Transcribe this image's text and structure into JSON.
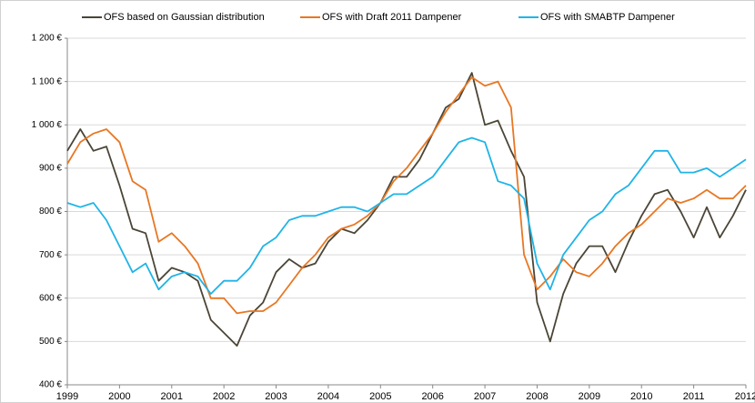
{
  "chart_data": {
    "type": "line",
    "x": [
      1999,
      1999.25,
      1999.5,
      1999.75,
      2000,
      2000.25,
      2000.5,
      2000.75,
      2001,
      2001.25,
      2001.5,
      2001.75,
      2002,
      2002.25,
      2002.5,
      2002.75,
      2003,
      2003.25,
      2003.5,
      2003.75,
      2004,
      2004.25,
      2004.5,
      2004.75,
      2005,
      2005.25,
      2005.5,
      2005.75,
      2006,
      2006.25,
      2006.5,
      2006.75,
      2007,
      2007.25,
      2007.5,
      2007.75,
      2008,
      2008.25,
      2008.5,
      2008.75,
      2009,
      2009.25,
      2009.5,
      2009.75,
      2010,
      2010.25,
      2010.5,
      2010.75,
      2011,
      2011.25,
      2011.5,
      2011.75,
      2012
    ],
    "series": [
      {
        "name": "OFS based on Gaussian distribution",
        "color": "#4a4536",
        "values": [
          940,
          990,
          940,
          950,
          860,
          760,
          750,
          640,
          670,
          660,
          640,
          550,
          520,
          490,
          560,
          590,
          660,
          690,
          670,
          680,
          730,
          760,
          750,
          780,
          820,
          880,
          880,
          920,
          980,
          1040,
          1060,
          1120,
          1000,
          1010,
          940,
          880,
          590,
          500,
          610,
          680,
          720,
          720,
          660,
          730,
          790,
          840,
          850,
          800,
          740,
          810,
          740,
          790,
          850
        ]
      },
      {
        "name": "OFS  with Draft 2011 Dampener",
        "color": "#e87722",
        "values": [
          910,
          960,
          980,
          990,
          960,
          870,
          850,
          730,
          750,
          720,
          680,
          600,
          600,
          565,
          570,
          570,
          590,
          630,
          670,
          700,
          740,
          760,
          770,
          790,
          820,
          870,
          900,
          940,
          980,
          1030,
          1070,
          1110,
          1090,
          1100,
          1040,
          700,
          620,
          650,
          690,
          660,
          650,
          680,
          720,
          750,
          770,
          800,
          830,
          820,
          830,
          850,
          830,
          830,
          860
        ]
      },
      {
        "name": "OFS with SMABTP Dampener",
        "color": "#1fb4e6",
        "values": [
          820,
          810,
          820,
          780,
          720,
          660,
          680,
          620,
          650,
          660,
          650,
          610,
          640,
          640,
          670,
          720,
          740,
          780,
          790,
          790,
          800,
          810,
          810,
          800,
          820,
          840,
          840,
          860,
          880,
          920,
          960,
          970,
          960,
          870,
          860,
          830,
          680,
          620,
          700,
          740,
          780,
          800,
          840,
          860,
          900,
          940,
          940,
          890,
          890,
          900,
          880,
          900,
          920
        ]
      }
    ],
    "xlim": [
      1999,
      2012
    ],
    "xticks": [
      1999,
      2000,
      2001,
      2002,
      2003,
      2004,
      2005,
      2006,
      2007,
      2008,
      2009,
      2010,
      2011,
      2012
    ],
    "ylim": [
      400,
      1200
    ],
    "yticks": [
      {
        "value": 400,
        "label": "400 €"
      },
      {
        "value": 500,
        "label": "500 €"
      },
      {
        "value": 600,
        "label": "600 €"
      },
      {
        "value": 700,
        "label": "700 €"
      },
      {
        "value": 800,
        "label": "800 €"
      },
      {
        "value": 900,
        "label": "900 €"
      },
      {
        "value": 1000,
        "label": "1 000 €"
      },
      {
        "value": 1100,
        "label": "1 100 €"
      },
      {
        "value": 1200,
        "label": "1 200 €"
      }
    ],
    "grid": true,
    "legend": "top"
  }
}
